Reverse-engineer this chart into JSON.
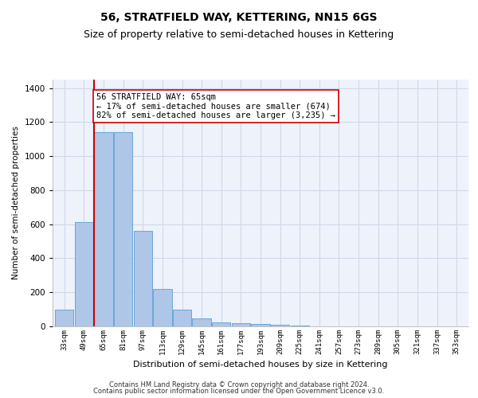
{
  "title": "56, STRATFIELD WAY, KETTERING, NN15 6GS",
  "subtitle": "Size of property relative to semi-detached houses in Kettering",
  "xlabel": "Distribution of semi-detached houses by size in Kettering",
  "ylabel": "Number of semi-detached properties",
  "categories": [
    "33sqm",
    "49sqm",
    "65sqm",
    "81sqm",
    "97sqm",
    "113sqm",
    "129sqm",
    "145sqm",
    "161sqm",
    "177sqm",
    "193sqm",
    "209sqm",
    "225sqm",
    "241sqm",
    "257sqm",
    "273sqm",
    "289sqm",
    "305sqm",
    "321sqm",
    "337sqm",
    "353sqm"
  ],
  "values": [
    100,
    615,
    1140,
    1140,
    560,
    220,
    100,
    45,
    25,
    20,
    15,
    8,
    3,
    1,
    0,
    0,
    0,
    0,
    0,
    0,
    0
  ],
  "bar_color": "#aec6e8",
  "bar_edgecolor": "#5a9fd4",
  "property_label": "56 STRATFIELD WAY: 65sqm",
  "property_bar_index": 2,
  "annotation_line": "← 17% of semi-detached houses are smaller (674)",
  "annotation_line2": "82% of semi-detached houses are larger (3,235) →",
  "annotation_box_color": "#ffffff",
  "annotation_box_edgecolor": "#cc0000",
  "vline_color": "#cc0000",
  "ylim": [
    0,
    1450
  ],
  "yticks": [
    0,
    200,
    400,
    600,
    800,
    1000,
    1200,
    1400
  ],
  "grid_color": "#d0d8e8",
  "background_color": "#eef2fa",
  "footer1": "Contains HM Land Registry data © Crown copyright and database right 2024.",
  "footer2": "Contains public sector information licensed under the Open Government Licence v3.0.",
  "title_fontsize": 10,
  "subtitle_fontsize": 9,
  "annotation_fontsize": 7.5,
  "xlabel_fontsize": 8,
  "ylabel_fontsize": 7.5,
  "xtick_fontsize": 6.5,
  "ytick_fontsize": 7.5,
  "footer_fontsize": 6
}
